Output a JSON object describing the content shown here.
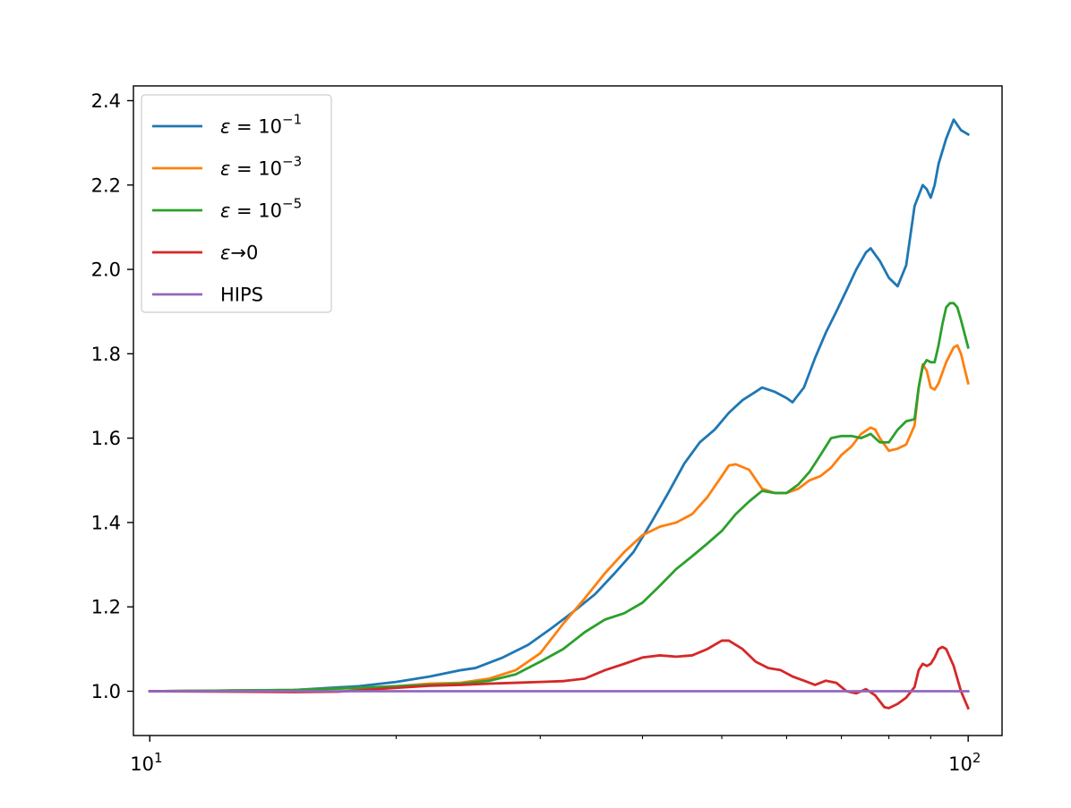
{
  "chart_data": {
    "type": "line",
    "title": "",
    "xlabel": "",
    "ylabel": "",
    "xscale": "log",
    "xlim": [
      9.55,
      110
    ],
    "ylim": [
      0.895,
      2.435
    ],
    "grid": false,
    "legend_position": "upper left",
    "x_ticks": [
      {
        "value": 10,
        "base": "10",
        "exp": "1"
      },
      {
        "value": 100,
        "base": "10",
        "exp": "2"
      }
    ],
    "x_minor_ticks": [
      20,
      30,
      40,
      50,
      60,
      70,
      80,
      90
    ],
    "y_ticks": [
      {
        "value": 1.0,
        "label": "1.0"
      },
      {
        "value": 1.2,
        "label": "1.2"
      },
      {
        "value": 1.4,
        "label": "1.4"
      },
      {
        "value": 1.6,
        "label": "1.6"
      },
      {
        "value": 1.8,
        "label": "1.8"
      },
      {
        "value": 2.0,
        "label": "2.0"
      },
      {
        "value": 2.2,
        "label": "2.2"
      },
      {
        "value": 2.4,
        "label": "2.4"
      }
    ],
    "series": [
      {
        "name": "ε = 10⁻¹",
        "legend": {
          "symbol": "ε",
          "eq": " = 10",
          "sup": "−1"
        },
        "color": "#1f77b4",
        "points": [
          [
            10,
            1.0
          ],
          [
            15,
            1.003
          ],
          [
            18,
            1.012
          ],
          [
            20,
            1.022
          ],
          [
            22,
            1.035
          ],
          [
            24,
            1.05
          ],
          [
            25,
            1.055
          ],
          [
            27,
            1.08
          ],
          [
            29,
            1.11
          ],
          [
            31,
            1.15
          ],
          [
            33,
            1.19
          ],
          [
            35,
            1.23
          ],
          [
            37,
            1.28
          ],
          [
            39,
            1.33
          ],
          [
            41,
            1.4
          ],
          [
            43,
            1.47
          ],
          [
            45,
            1.54
          ],
          [
            47,
            1.59
          ],
          [
            49,
            1.62
          ],
          [
            51,
            1.66
          ],
          [
            53,
            1.69
          ],
          [
            55,
            1.71
          ],
          [
            56,
            1.72
          ],
          [
            58,
            1.71
          ],
          [
            60,
            1.695
          ],
          [
            61,
            1.685
          ],
          [
            63,
            1.72
          ],
          [
            65,
            1.79
          ],
          [
            67,
            1.85
          ],
          [
            69,
            1.9
          ],
          [
            71,
            1.95
          ],
          [
            73,
            2.0
          ],
          [
            75,
            2.04
          ],
          [
            76,
            2.05
          ],
          [
            78,
            2.02
          ],
          [
            80,
            1.98
          ],
          [
            82,
            1.96
          ],
          [
            84,
            2.01
          ],
          [
            86,
            2.15
          ],
          [
            88,
            2.2
          ],
          [
            89,
            2.19
          ],
          [
            90,
            2.17
          ],
          [
            91,
            2.2
          ],
          [
            92,
            2.25
          ],
          [
            94,
            2.31
          ],
          [
            96,
            2.355
          ],
          [
            98,
            2.33
          ],
          [
            100,
            2.32
          ]
        ]
      },
      {
        "name": "ε = 10⁻³",
        "legend": {
          "symbol": "ε",
          "eq": " = 10",
          "sup": "−3"
        },
        "color": "#ff7f0e",
        "points": [
          [
            10,
            1.0
          ],
          [
            15,
            1.003
          ],
          [
            18,
            1.008
          ],
          [
            20,
            1.012
          ],
          [
            22,
            1.018
          ],
          [
            24,
            1.02
          ],
          [
            26,
            1.03
          ],
          [
            28,
            1.05
          ],
          [
            30,
            1.09
          ],
          [
            32,
            1.16
          ],
          [
            34,
            1.22
          ],
          [
            36,
            1.28
          ],
          [
            38,
            1.33
          ],
          [
            40,
            1.37
          ],
          [
            42,
            1.39
          ],
          [
            44,
            1.4
          ],
          [
            46,
            1.42
          ],
          [
            48,
            1.46
          ],
          [
            50,
            1.51
          ],
          [
            51,
            1.535
          ],
          [
            52,
            1.538
          ],
          [
            54,
            1.525
          ],
          [
            56,
            1.48
          ],
          [
            58,
            1.47
          ],
          [
            60,
            1.47
          ],
          [
            62,
            1.48
          ],
          [
            64,
            1.5
          ],
          [
            66,
            1.51
          ],
          [
            68,
            1.53
          ],
          [
            70,
            1.56
          ],
          [
            72,
            1.58
          ],
          [
            74,
            1.61
          ],
          [
            76,
            1.625
          ],
          [
            77,
            1.62
          ],
          [
            78,
            1.6
          ],
          [
            80,
            1.57
          ],
          [
            82,
            1.575
          ],
          [
            84,
            1.585
          ],
          [
            86,
            1.63
          ],
          [
            87,
            1.72
          ],
          [
            88,
            1.775
          ],
          [
            89,
            1.76
          ],
          [
            90,
            1.72
          ],
          [
            91,
            1.715
          ],
          [
            92,
            1.73
          ],
          [
            94,
            1.78
          ],
          [
            96,
            1.815
          ],
          [
            97,
            1.82
          ],
          [
            98,
            1.8
          ],
          [
            100,
            1.73
          ]
        ]
      },
      {
        "name": "ε = 10⁻⁵",
        "legend": {
          "symbol": "ε",
          "eq": " = 10",
          "sup": "−5"
        },
        "color": "#2ca02c",
        "points": [
          [
            10,
            1.0
          ],
          [
            15,
            1.003
          ],
          [
            18,
            1.008
          ],
          [
            20,
            1.012
          ],
          [
            22,
            1.015
          ],
          [
            24,
            1.018
          ],
          [
            26,
            1.025
          ],
          [
            28,
            1.04
          ],
          [
            30,
            1.07
          ],
          [
            32,
            1.1
          ],
          [
            34,
            1.14
          ],
          [
            36,
            1.17
          ],
          [
            38,
            1.185
          ],
          [
            40,
            1.21
          ],
          [
            42,
            1.25
          ],
          [
            44,
            1.29
          ],
          [
            46,
            1.32
          ],
          [
            48,
            1.35
          ],
          [
            50,
            1.38
          ],
          [
            52,
            1.42
          ],
          [
            54,
            1.45
          ],
          [
            56,
            1.475
          ],
          [
            58,
            1.47
          ],
          [
            60,
            1.47
          ],
          [
            62,
            1.49
          ],
          [
            64,
            1.52
          ],
          [
            66,
            1.56
          ],
          [
            68,
            1.6
          ],
          [
            70,
            1.605
          ],
          [
            72,
            1.605
          ],
          [
            74,
            1.6
          ],
          [
            76,
            1.61
          ],
          [
            78,
            1.59
          ],
          [
            80,
            1.59
          ],
          [
            82,
            1.62
          ],
          [
            84,
            1.64
          ],
          [
            86,
            1.645
          ],
          [
            87,
            1.72
          ],
          [
            88,
            1.77
          ],
          [
            89,
            1.785
          ],
          [
            90,
            1.78
          ],
          [
            91,
            1.78
          ],
          [
            92,
            1.82
          ],
          [
            93,
            1.87
          ],
          [
            94,
            1.91
          ],
          [
            95,
            1.92
          ],
          [
            96,
            1.92
          ],
          [
            97,
            1.91
          ],
          [
            98,
            1.88
          ],
          [
            100,
            1.815
          ]
        ]
      },
      {
        "name": "ε→0",
        "legend": {
          "symbol": "ε",
          "eq": "→0",
          "sup": ""
        },
        "color": "#d62728",
        "points": [
          [
            10,
            1.0
          ],
          [
            15,
            0.998
          ],
          [
            17,
            0.999
          ],
          [
            20,
            1.008
          ],
          [
            22,
            1.013
          ],
          [
            24,
            1.015
          ],
          [
            26,
            1.018
          ],
          [
            28,
            1.02
          ],
          [
            30,
            1.022
          ],
          [
            32,
            1.024
          ],
          [
            34,
            1.03
          ],
          [
            36,
            1.05
          ],
          [
            38,
            1.065
          ],
          [
            40,
            1.08
          ],
          [
            42,
            1.085
          ],
          [
            44,
            1.082
          ],
          [
            46,
            1.085
          ],
          [
            48,
            1.1
          ],
          [
            50,
            1.12
          ],
          [
            51,
            1.12
          ],
          [
            53,
            1.1
          ],
          [
            55,
            1.07
          ],
          [
            57,
            1.055
          ],
          [
            59,
            1.05
          ],
          [
            61,
            1.035
          ],
          [
            63,
            1.025
          ],
          [
            65,
            1.015
          ],
          [
            67,
            1.025
          ],
          [
            69,
            1.02
          ],
          [
            71,
            1.0
          ],
          [
            73,
            0.995
          ],
          [
            75,
            1.005
          ],
          [
            77,
            0.99
          ],
          [
            79,
            0.962
          ],
          [
            80,
            0.96
          ],
          [
            82,
            0.97
          ],
          [
            84,
            0.985
          ],
          [
            86,
            1.01
          ],
          [
            87,
            1.05
          ],
          [
            88,
            1.065
          ],
          [
            89,
            1.06
          ],
          [
            90,
            1.065
          ],
          [
            91,
            1.08
          ],
          [
            92,
            1.1
          ],
          [
            93,
            1.105
          ],
          [
            94,
            1.1
          ],
          [
            96,
            1.06
          ],
          [
            98,
            1.0
          ],
          [
            100,
            0.96
          ]
        ]
      },
      {
        "name": "HIPS",
        "legend": {
          "symbol": "",
          "eq": "HIPS",
          "sup": ""
        },
        "color": "#9467bd",
        "points": [
          [
            10,
            1.0
          ],
          [
            100,
            1.0
          ]
        ]
      }
    ]
  }
}
